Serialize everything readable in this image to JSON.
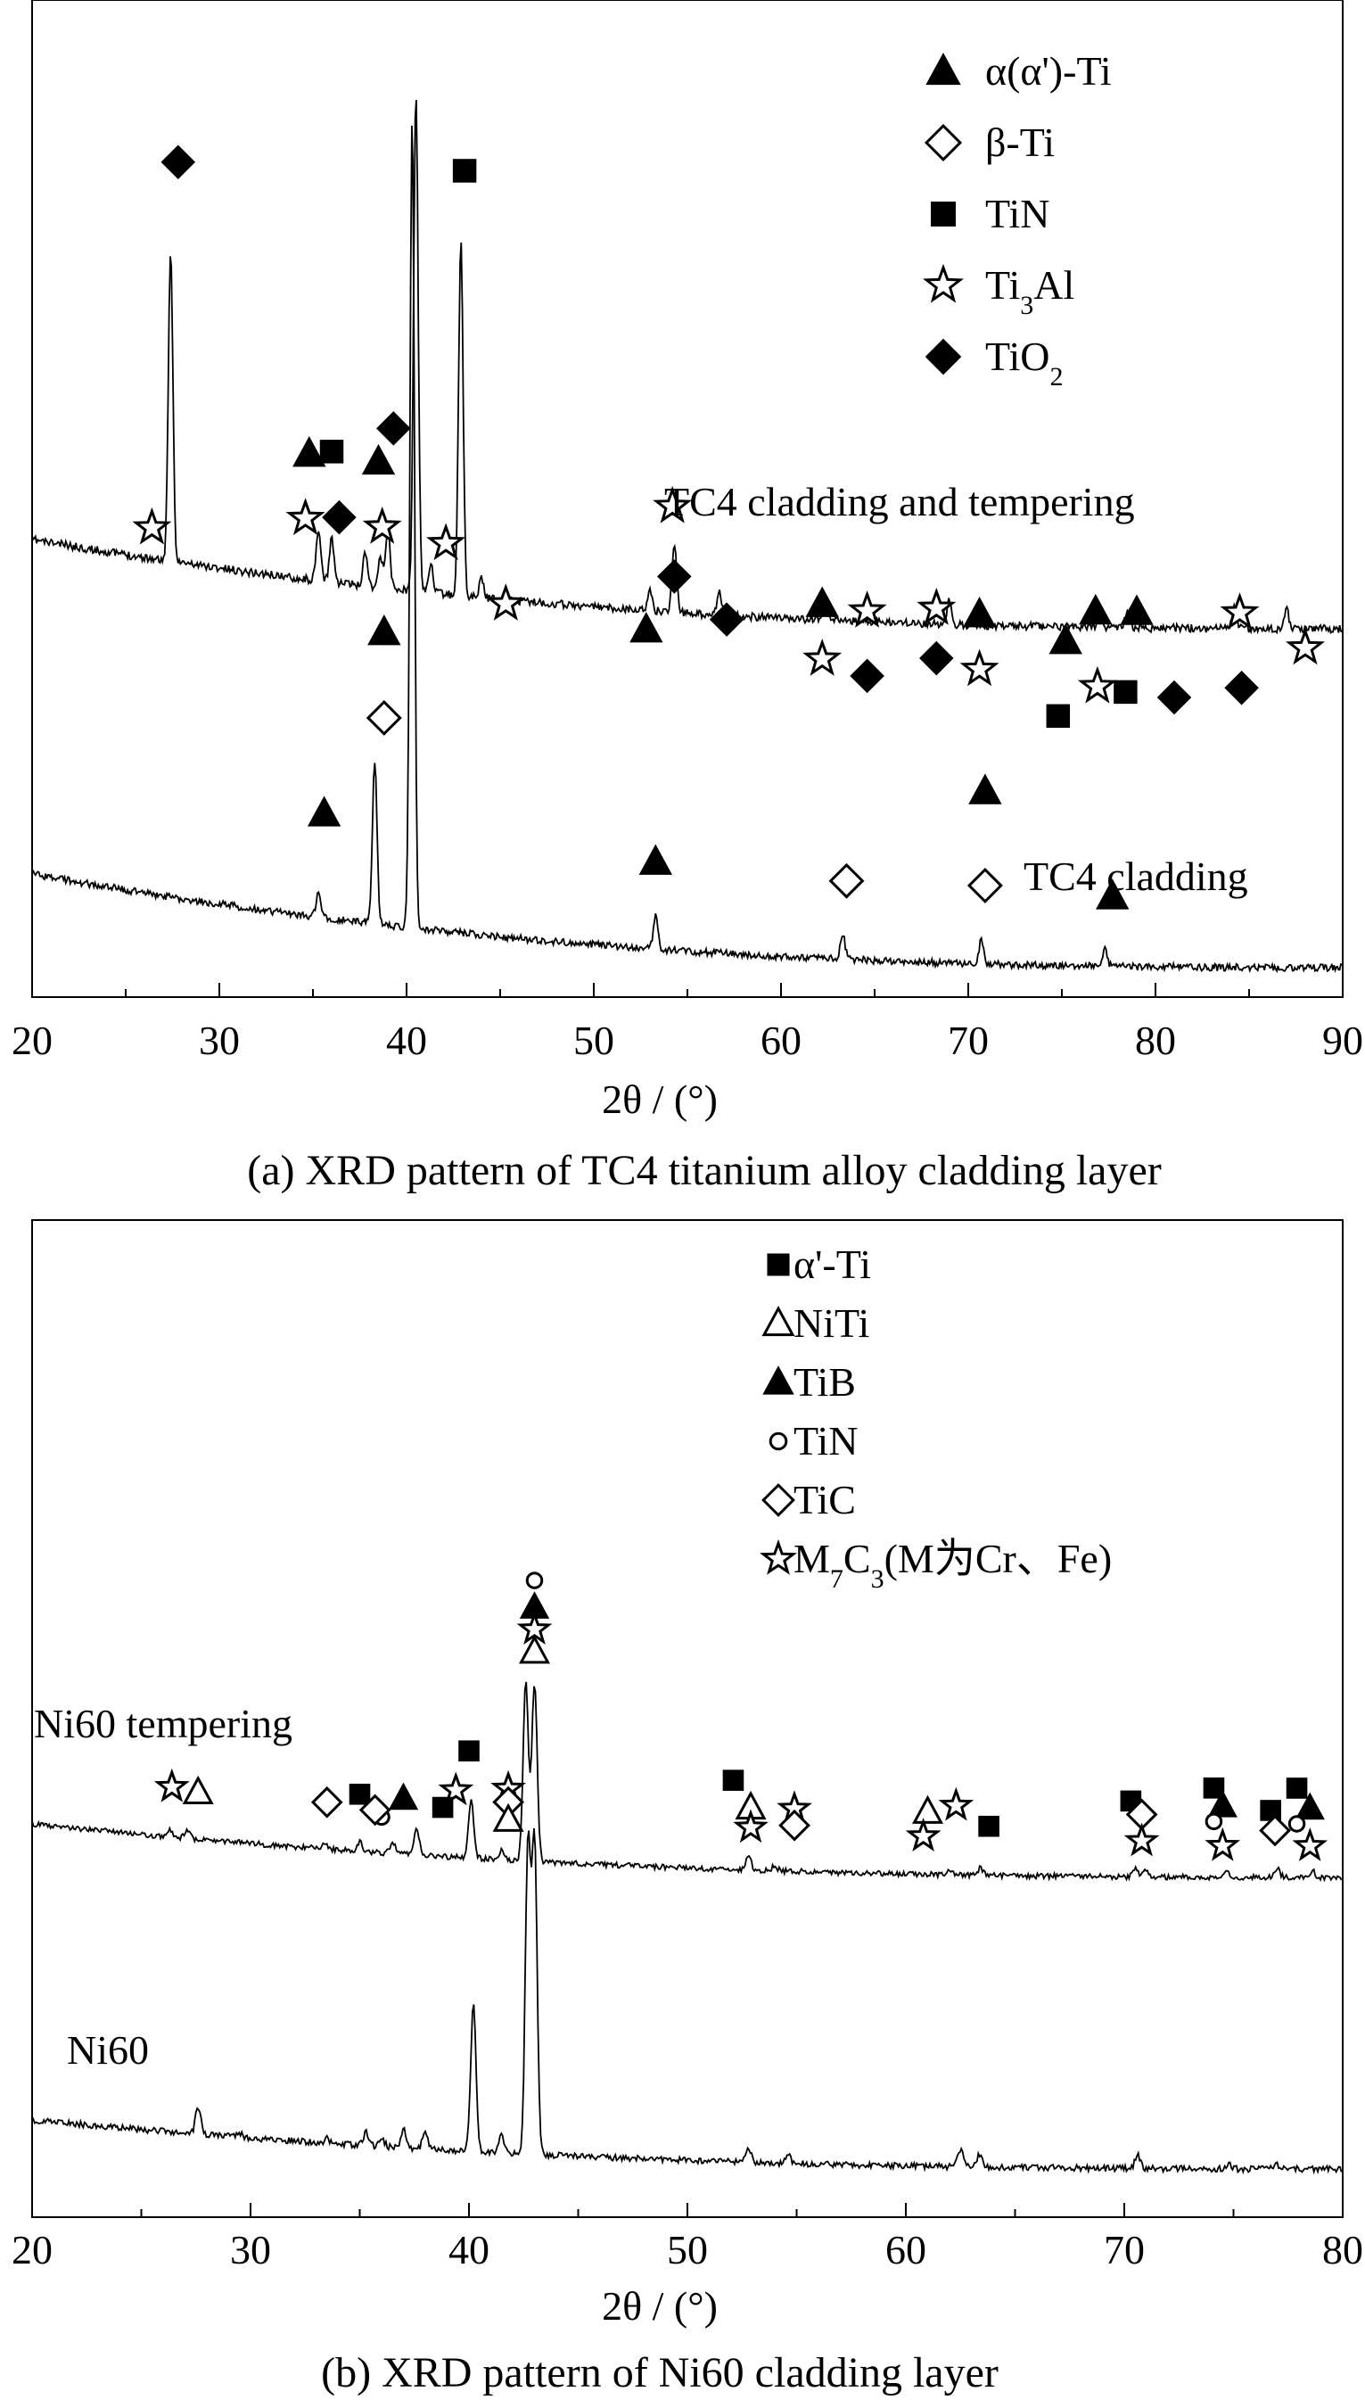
{
  "chart_data": [
    {
      "type": "line",
      "caption": "(a) XRD pattern of TC4 titanium alloy cladding layer",
      "xlabel": "2θ / (°)",
      "xlim": [
        20,
        90
      ],
      "x_ticks": [
        20,
        30,
        40,
        50,
        60,
        70,
        80,
        90
      ],
      "legend_position": "top-right",
      "legend": [
        {
          "marker": "filled-triangle",
          "label": "α(α')-Ti"
        },
        {
          "marker": "open-diamond",
          "label": "β-Ti"
        },
        {
          "marker": "filled-square",
          "label": "TiN"
        },
        {
          "marker": "open-star",
          "label": "Ti3Al",
          "base": "Ti",
          "sub": "3",
          "rest": "Al"
        },
        {
          "marker": "filled-diamond",
          "label": "TiO2",
          "base": "TiO",
          "sub": "2",
          "rest": ""
        }
      ],
      "series": [
        {
          "name": "TC4 cladding and tempering",
          "peaks": [
            {
              "x": 27.4,
              "h": 0.62
            },
            {
              "x": 35.3,
              "h": 0.1
            },
            {
              "x": 36.0,
              "h": 0.09
            },
            {
              "x": 37.8,
              "h": 0.07
            },
            {
              "x": 38.6,
              "h": 0.06
            },
            {
              "x": 39.0,
              "h": 0.12
            },
            {
              "x": 40.5,
              "h": 1.0
            },
            {
              "x": 41.3,
              "h": 0.06
            },
            {
              "x": 42.9,
              "h": 0.71
            },
            {
              "x": 44.0,
              "h": 0.04
            },
            {
              "x": 53.0,
              "h": 0.04
            },
            {
              "x": 54.3,
              "h": 0.14
            },
            {
              "x": 56.7,
              "h": 0.05
            },
            {
              "x": 62.4,
              "h": 0.04
            },
            {
              "x": 69.0,
              "h": 0.05
            },
            {
              "x": 77.0,
              "h": 0.03
            },
            {
              "x": 78.5,
              "h": 0.03
            },
            {
              "x": 84.2,
              "h": 0.04
            },
            {
              "x": 87.0,
              "h": 0.04
            }
          ],
          "markers": [
            {
              "x": 40.5,
              "type": "filled-triangle",
              "level": 1.15
            },
            {
              "x": 27.8,
              "type": "filled-diamond",
              "level": 0.73
            },
            {
              "x": 43.1,
              "type": "filled-square",
              "level": 0.78
            },
            {
              "x": 34.8,
              "type": "filled-triangle",
              "level": 0.18
            },
            {
              "x": 36.0,
              "type": "filled-square",
              "level": 0.19
            },
            {
              "x": 38.5,
              "type": "filled-triangle",
              "level": 0.18
            },
            {
              "x": 39.3,
              "type": "filled-diamond",
              "level": 0.25
            },
            {
              "x": 26.4,
              "type": "open-star",
              "level": -0.01
            },
            {
              "x": 34.6,
              "type": "open-star",
              "level": 0.05
            },
            {
              "x": 36.4,
              "type": "filled-diamond",
              "level": 0.06
            },
            {
              "x": 38.7,
              "type": "open-star",
              "level": 0.05
            },
            {
              "x": 42.1,
              "type": "open-star",
              "level": 0.03
            },
            {
              "x": 45.3,
              "type": "open-star",
              "level": -0.08
            },
            {
              "x": 52.8,
              "type": "filled-triangle",
              "level": -0.11
            },
            {
              "x": 54.2,
              "type": "open-star",
              "level": 0.14
            },
            {
              "x": 54.3,
              "type": "filled-diamond",
              "level": 0.0
            },
            {
              "x": 57.1,
              "type": "filled-diamond",
              "level": -0.08
            },
            {
              "x": 62.2,
              "type": "filled-triangle",
              "level": -0.04
            },
            {
              "x": 62.2,
              "type": "open-star",
              "level": -0.15
            },
            {
              "x": 64.6,
              "type": "open-star",
              "level": -0.05
            },
            {
              "x": 64.6,
              "type": "filled-diamond",
              "level": -0.18
            },
            {
              "x": 68.3,
              "type": "open-star",
              "level": -0.04
            },
            {
              "x": 68.3,
              "type": "filled-diamond",
              "level": -0.14
            },
            {
              "x": 70.6,
              "type": "filled-triangle",
              "level": -0.05
            },
            {
              "x": 70.6,
              "type": "open-star",
              "level": -0.16
            },
            {
              "x": 75.2,
              "type": "filled-triangle",
              "level": -0.1
            },
            {
              "x": 74.8,
              "type": "filled-square",
              "level": -0.25
            },
            {
              "x": 76.8,
              "type": "filled-triangle",
              "level": -0.04
            },
            {
              "x": 76.9,
              "type": "open-star",
              "level": -0.19
            },
            {
              "x": 78.4,
              "type": "filled-square",
              "level": -0.2
            },
            {
              "x": 79.0,
              "type": "filled-triangle",
              "level": -0.04
            },
            {
              "x": 81.0,
              "type": "filled-diamond",
              "level": -0.21
            },
            {
              "x": 84.5,
              "type": "open-star",
              "level": -0.04
            },
            {
              "x": 84.6,
              "type": "filled-diamond",
              "level": -0.19
            },
            {
              "x": 88.0,
              "type": "open-star",
              "level": -0.11
            }
          ]
        },
        {
          "name": "TC4 cladding",
          "peaks": [
            {
              "x": 35.3,
              "h": 0.03
            },
            {
              "x": 38.3,
              "h": 0.19
            },
            {
              "x": 40.3,
              "h": 0.95
            },
            {
              "x": 53.3,
              "h": 0.04
            },
            {
              "x": 63.3,
              "h": 0.03
            },
            {
              "x": 70.7,
              "h": 0.03
            },
            {
              "x": 77.3,
              "h": 0.02
            }
          ],
          "markers": [
            {
              "x": 38.8,
              "type": "filled-triangle",
              "level": 0.3
            },
            {
              "x": 38.8,
              "type": "open-diamond",
              "level": 0.2
            },
            {
              "x": 35.6,
              "type": "filled-triangle",
              "level": 0.08
            },
            {
              "x": 53.3,
              "type": "filled-triangle",
              "level": 0.06
            },
            {
              "x": 63.5,
              "type": "open-diamond",
              "level": 0.05
            },
            {
              "x": 70.9,
              "type": "filled-triangle",
              "level": 0.16
            },
            {
              "x": 70.9,
              "type": "open-diamond",
              "level": 0.05
            },
            {
              "x": 77.7,
              "type": "filled-triangle",
              "level": 0.04
            }
          ]
        }
      ]
    },
    {
      "type": "line",
      "caption": "(b) XRD pattern of Ni60 cladding layer",
      "xlabel": "2θ / (°)",
      "xlim": [
        20,
        80
      ],
      "x_ticks": [
        20,
        30,
        40,
        50,
        60,
        70,
        80
      ],
      "legend_position": "top-right",
      "legend": [
        {
          "marker": "filled-square",
          "label": "α'-Ti"
        },
        {
          "marker": "open-triangle",
          "label": "NiTi"
        },
        {
          "marker": "filled-triangle",
          "label": "TiB"
        },
        {
          "marker": "open-circle",
          "label": "TiN"
        },
        {
          "marker": "open-diamond",
          "label": "TiC"
        },
        {
          "marker": "open-star",
          "label": "M7C3(M为Cr、Fe)",
          "base": "M",
          "sub": "7",
          "rest": "C",
          "sub2": "3",
          "rest2": "(M为Cr、Fe)"
        }
      ],
      "series": [
        {
          "name": "Ni60 tempering",
          "peaks": [
            {
              "x": 26.3,
              "h": 0.015
            },
            {
              "x": 27.1,
              "h": 0.02
            },
            {
              "x": 33.4,
              "h": 0.01
            },
            {
              "x": 35.0,
              "h": 0.02
            },
            {
              "x": 36.5,
              "h": 0.025
            },
            {
              "x": 37.6,
              "h": 0.06
            },
            {
              "x": 40.1,
              "h": 0.13
            },
            {
              "x": 41.5,
              "h": 0.02
            },
            {
              "x": 42.6,
              "h": 0.4
            },
            {
              "x": 43.0,
              "h": 0.4
            },
            {
              "x": 52.8,
              "h": 0.03
            },
            {
              "x": 54.0,
              "h": 0.01
            },
            {
              "x": 62.0,
              "h": 0.01
            },
            {
              "x": 63.4,
              "h": 0.015
            },
            {
              "x": 70.5,
              "h": 0.02
            },
            {
              "x": 71.0,
              "h": 0.015
            },
            {
              "x": 74.7,
              "h": 0.01
            },
            {
              "x": 77.0,
              "h": 0.02
            },
            {
              "x": 78.6,
              "h": 0.015
            }
          ],
          "markers": [
            {
              "x": 43.0,
              "type": "open-circle",
              "level": 0.55
            },
            {
              "x": 43.0,
              "type": "filled-triangle",
              "level": 0.49
            },
            {
              "x": 43.0,
              "type": "open-star",
              "level": 0.44
            },
            {
              "x": 43.0,
              "type": "open-triangle",
              "level": 0.39
            },
            {
              "x": 40.0,
              "type": "filled-square",
              "level": 0.16
            },
            {
              "x": 41.8,
              "type": "open-star",
              "level": 0.08
            },
            {
              "x": 41.8,
              "type": "open-diamond",
              "level": 0.05
            },
            {
              "x": 41.8,
              "type": "open-triangle",
              "level": 0.01
            },
            {
              "x": 39.4,
              "type": "open-star",
              "level": 0.07
            },
            {
              "x": 38.8,
              "type": "filled-square",
              "level": 0.03
            },
            {
              "x": 37.0,
              "type": "filled-triangle",
              "level": 0.045
            },
            {
              "x": 35.0,
              "type": "filled-square",
              "level": 0.048
            },
            {
              "x": 36.0,
              "type": "open-circle",
              "level": 0.0
            },
            {
              "x": 35.7,
              "type": "open-diamond",
              "level": 0.015
            },
            {
              "x": 33.5,
              "type": "open-diamond",
              "level": 0.025
            },
            {
              "x": 27.6,
              "type": "open-triangle",
              "level": 0.025
            },
            {
              "x": 26.4,
              "type": "open-star",
              "level": 0.032
            },
            {
              "x": 52.1,
              "type": "filled-square",
              "level": 0.12
            },
            {
              "x": 52.9,
              "type": "open-triangle",
              "level": 0.06
            },
            {
              "x": 52.9,
              "type": "open-star",
              "level": 0.015
            },
            {
              "x": 54.9,
              "type": "open-star",
              "level": 0.06
            },
            {
              "x": 54.9,
              "type": "open-diamond",
              "level": 0.023
            },
            {
              "x": 61.0,
              "type": "open-triangle",
              "level": 0.06
            },
            {
              "x": 62.3,
              "type": "open-star",
              "level": 0.075
            },
            {
              "x": 60.8,
              "type": "open-star",
              "level": 0.005
            },
            {
              "x": 63.8,
              "type": "filled-square",
              "level": 0.03
            },
            {
              "x": 70.3,
              "type": "filled-square",
              "level": 0.09
            },
            {
              "x": 70.8,
              "type": "open-diamond",
              "level": 0.06
            },
            {
              "x": 70.8,
              "type": "open-star",
              "level": 0.0
            },
            {
              "x": 74.1,
              "type": "filled-square",
              "level": 0.12
            },
            {
              "x": 74.5,
              "type": "filled-triangle",
              "level": 0.08
            },
            {
              "x": 74.1,
              "type": "open-circle",
              "level": 0.045
            },
            {
              "x": 74.5,
              "type": "open-star",
              "level": -0.01
            },
            {
              "x": 76.7,
              "type": "filled-square",
              "level": 0.07
            },
            {
              "x": 76.9,
              "type": "open-diamond",
              "level": 0.025
            },
            {
              "x": 77.9,
              "type": "filled-square",
              "level": 0.12
            },
            {
              "x": 78.5,
              "type": "filled-triangle",
              "level": 0.075
            },
            {
              "x": 77.9,
              "type": "open-circle",
              "level": 0.04
            },
            {
              "x": 78.5,
              "type": "open-star",
              "level": -0.01
            }
          ]
        },
        {
          "name": "Ni60",
          "peaks": [
            {
              "x": 27.6,
              "h": 0.06
            },
            {
              "x": 29.5,
              "h": 0.01
            },
            {
              "x": 33.5,
              "h": 0.01
            },
            {
              "x": 35.3,
              "h": 0.03
            },
            {
              "x": 36.0,
              "h": 0.02
            },
            {
              "x": 37.0,
              "h": 0.04
            },
            {
              "x": 38.0,
              "h": 0.04
            },
            {
              "x": 40.2,
              "h": 0.33
            },
            {
              "x": 41.5,
              "h": 0.04
            },
            {
              "x": 42.7,
              "h": 0.7
            },
            {
              "x": 43.0,
              "h": 0.7
            },
            {
              "x": 52.8,
              "h": 0.03
            },
            {
              "x": 54.6,
              "h": 0.02
            },
            {
              "x": 62.5,
              "h": 0.04
            },
            {
              "x": 63.4,
              "h": 0.03
            },
            {
              "x": 70.6,
              "h": 0.03
            },
            {
              "x": 74.8,
              "h": 0.01
            },
            {
              "x": 77.0,
              "h": 0.01
            }
          ],
          "markers": []
        }
      ]
    }
  ]
}
